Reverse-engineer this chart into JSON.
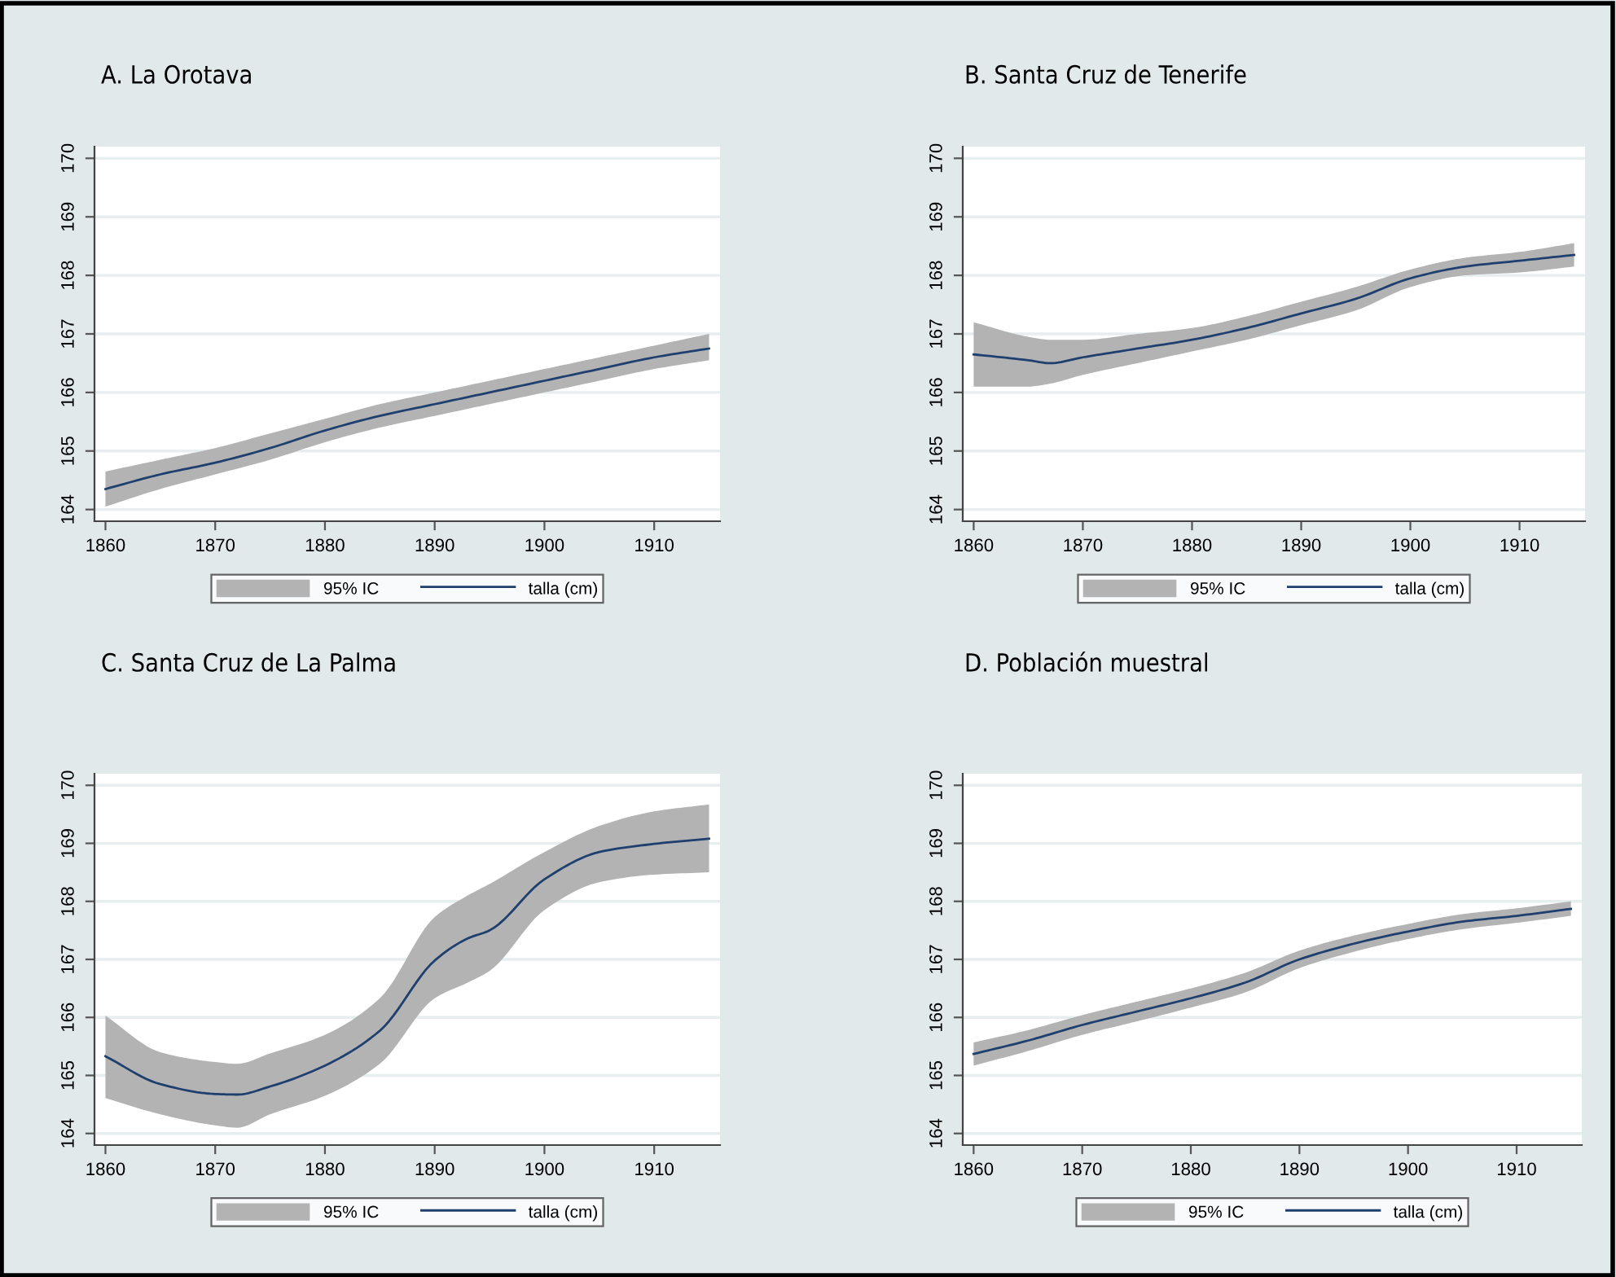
{
  "chart_data": [
    {
      "type": "line",
      "title": "A. La Orotava",
      "annotations": [
        "95% IC"
      ],
      "x": [
        1860,
        1865,
        1870,
        1875,
        1880,
        1885,
        1890,
        1895,
        1900,
        1905,
        1910,
        1915
      ],
      "series": [
        {
          "name": "talla (cm)",
          "color": "#1f3f6e",
          "values": [
            164.35,
            164.6,
            164.8,
            165.05,
            165.35,
            165.6,
            165.8,
            166.0,
            166.2,
            166.4,
            166.6,
            166.75
          ],
          "lower": [
            164.05,
            164.35,
            164.6,
            164.85,
            165.15,
            165.4,
            165.6,
            165.8,
            166.0,
            166.2,
            166.4,
            166.55
          ],
          "upper": [
            164.65,
            164.85,
            165.05,
            165.3,
            165.55,
            165.8,
            166.0,
            166.2,
            166.4,
            166.6,
            166.8,
            167.0
          ]
        }
      ],
      "xlim": [
        1859,
        1916
      ],
      "ylim": [
        163.8,
        170.2
      ],
      "xticks": [
        1860,
        1870,
        1880,
        1890,
        1900,
        1910
      ],
      "yticks": [
        164,
        165,
        166,
        167,
        168,
        169,
        170
      ],
      "grid": "y",
      "legend": "bottom"
    },
    {
      "type": "line",
      "title": "B. Santa Cruz de Tenerife",
      "annotations": [
        "95% IC"
      ],
      "x": [
        1860,
        1865,
        1867,
        1870,
        1875,
        1880,
        1885,
        1890,
        1895,
        1900,
        1905,
        1910,
        1915
      ],
      "series": [
        {
          "name": "talla (cm)",
          "color": "#1f3f6e",
          "values": [
            166.65,
            166.55,
            166.5,
            166.6,
            166.75,
            166.9,
            167.1,
            167.35,
            167.6,
            167.95,
            168.15,
            168.25,
            168.35
          ],
          "lower": [
            166.1,
            166.1,
            166.15,
            166.3,
            166.5,
            166.7,
            166.9,
            167.15,
            167.4,
            167.8,
            168.0,
            168.05,
            168.15
          ],
          "upper": [
            167.2,
            166.95,
            166.9,
            166.9,
            167.0,
            167.1,
            167.3,
            167.55,
            167.8,
            168.1,
            168.3,
            168.4,
            168.55
          ]
        }
      ],
      "xlim": [
        1859,
        1916
      ],
      "ylim": [
        163.8,
        170.2
      ],
      "xticks": [
        1860,
        1870,
        1880,
        1890,
        1900,
        1910
      ],
      "yticks": [
        164,
        165,
        166,
        167,
        168,
        169,
        170
      ],
      "grid": "y",
      "legend": "bottom"
    },
    {
      "type": "line",
      "title": "C. Santa Cruz de La Palma",
      "annotations": [
        "95% IC"
      ],
      "x": [
        1860,
        1865,
        1870,
        1872,
        1875,
        1880,
        1885,
        1890,
        1893,
        1895,
        1900,
        1905,
        1910,
        1915
      ],
      "series": [
        {
          "name": "talla (cm)",
          "color": "#1f3f6e",
          "values": [
            165.33,
            164.85,
            164.68,
            164.67,
            164.81,
            165.17,
            165.77,
            166.98,
            167.36,
            167.5,
            168.38,
            168.85,
            168.99,
            169.08
          ],
          "lower": [
            164.61,
            164.33,
            164.14,
            164.1,
            164.33,
            164.65,
            165.2,
            166.33,
            166.6,
            166.8,
            167.85,
            168.33,
            168.46,
            168.5
          ],
          "upper": [
            166.03,
            165.4,
            165.23,
            165.2,
            165.38,
            165.7,
            166.33,
            167.73,
            168.1,
            168.3,
            168.85,
            169.3,
            169.55,
            169.67
          ]
        }
      ],
      "xlim": [
        1859,
        1916
      ],
      "ylim": [
        163.8,
        170.2
      ],
      "xticks": [
        1860,
        1870,
        1880,
        1890,
        1900,
        1910
      ],
      "yticks": [
        164,
        165,
        166,
        167,
        168,
        169,
        170
      ],
      "grid": "y",
      "legend": "bottom"
    },
    {
      "type": "line",
      "title": "D. Población muestral",
      "annotations": [
        "95% IC"
      ],
      "x": [
        1860,
        1865,
        1870,
        1875,
        1880,
        1885,
        1890,
        1895,
        1900,
        1905,
        1910,
        1915
      ],
      "series": [
        {
          "name": "talla (cm)",
          "color": "#1f3f6e",
          "values": [
            165.37,
            165.6,
            165.87,
            166.1,
            166.33,
            166.6,
            167.0,
            167.27,
            167.48,
            167.65,
            167.75,
            167.87
          ],
          "lower": [
            165.17,
            165.42,
            165.7,
            165.93,
            166.17,
            166.43,
            166.85,
            167.13,
            167.35,
            167.52,
            167.63,
            167.75
          ],
          "upper": [
            165.57,
            165.78,
            166.04,
            166.27,
            166.5,
            166.77,
            167.15,
            167.41,
            167.61,
            167.78,
            167.88,
            168.0
          ]
        }
      ],
      "xlim": [
        1859,
        1916
      ],
      "ylim": [
        163.8,
        170.2
      ],
      "xticks": [
        1860,
        1870,
        1880,
        1890,
        1900,
        1910
      ],
      "yticks": [
        164,
        165,
        166,
        167,
        168,
        169,
        170
      ],
      "grid": "y",
      "legend": "bottom"
    }
  ]
}
